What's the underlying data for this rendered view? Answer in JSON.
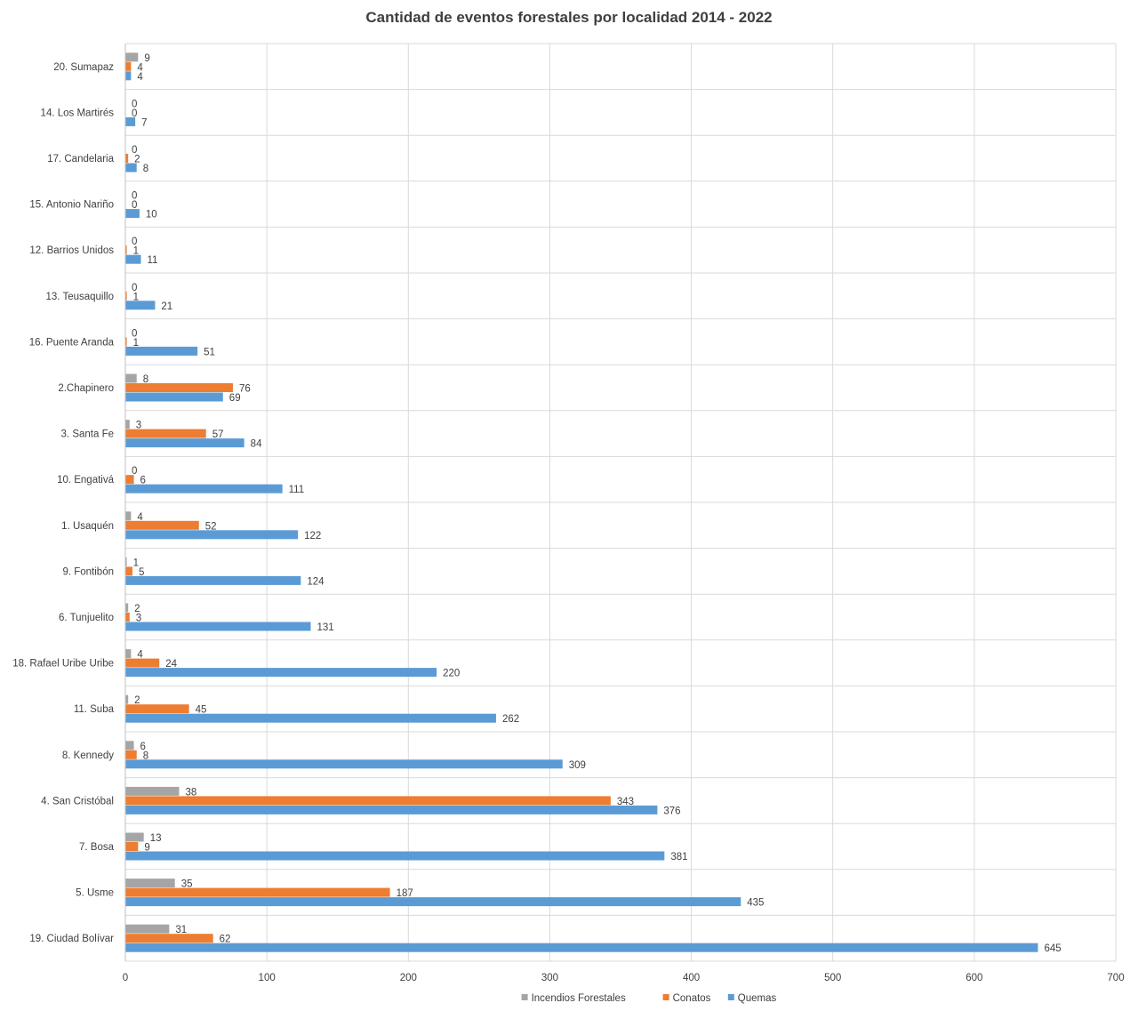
{
  "chart_data": {
    "type": "bar",
    "orientation": "horizontal",
    "title": "Cantidad de eventos forestales por localidad 2014 - 2022",
    "categories": [
      "20. Sumapaz",
      "14. Los Martirés",
      "17. Candelaria",
      "15. Antonio Nariño",
      "12. Barrios Unidos",
      "13. Teusaquillo",
      "16. Puente Aranda",
      "2.Chapinero",
      "3. Santa Fe",
      "10. Engativá",
      "1. Usaquén",
      "9. Fontibón",
      "6. Tunjuelito",
      "18. Rafael Uribe Uribe",
      "11. Suba",
      "8. Kennedy",
      "4. San Cristóbal",
      "7. Bosa",
      "5. Usme",
      "19. Ciudad Bolívar"
    ],
    "series": [
      {
        "name": "Incendios Forestales",
        "color": "#a5a5a5",
        "values": [
          9,
          0,
          0,
          0,
          0,
          0,
          0,
          8,
          3,
          0,
          4,
          1,
          2,
          4,
          2,
          6,
          38,
          13,
          35,
          31
        ]
      },
      {
        "name": "Conatos",
        "color": "#ed7d31",
        "values": [
          4,
          0,
          2,
          0,
          1,
          1,
          1,
          76,
          57,
          6,
          52,
          5,
          3,
          24,
          45,
          8,
          343,
          9,
          187,
          62
        ]
      },
      {
        "name": "Quemas",
        "color": "#5b9bd5",
        "values": [
          4,
          7,
          8,
          10,
          11,
          21,
          51,
          69,
          84,
          111,
          122,
          124,
          131,
          220,
          262,
          309,
          376,
          381,
          435,
          645
        ]
      }
    ],
    "xlim": [
      0,
      700
    ],
    "xticks": [
      0,
      100,
      200,
      300,
      400,
      500,
      600,
      700
    ],
    "grid": true,
    "legend_position": "bottom",
    "xlabel": "",
    "ylabel": ""
  }
}
